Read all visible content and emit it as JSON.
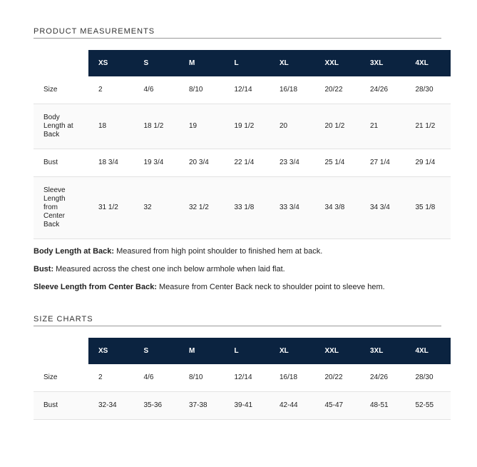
{
  "sections": [
    {
      "title": "PRODUCT MEASUREMENTS",
      "table": {
        "header": [
          "XS",
          "S",
          "M",
          "L",
          "XL",
          "XXL",
          "3XL",
          "4XL"
        ],
        "rows": [
          [
            "Size",
            "2",
            "4/6",
            "8/10",
            "12/14",
            "16/18",
            "20/22",
            "24/26",
            "28/30"
          ],
          [
            "Body Length at Back",
            "18",
            "18 1/2",
            "19",
            "19 1/2",
            "20",
            "20 1/2",
            "21",
            "21 1/2"
          ],
          [
            "Bust",
            "18 3/4",
            "19 3/4",
            "20 3/4",
            "22 1/4",
            "23 3/4",
            "25 1/4",
            "27 1/4",
            "29 1/4"
          ],
          [
            "Sleeve Length from Center Back",
            "31 1/2",
            "32",
            "32 1/2",
            "33 1/8",
            "33 3/4",
            "34 3/8",
            "34 3/4",
            "35 1/8"
          ]
        ]
      },
      "notes": [
        {
          "term": "Body Length at Back:",
          "text": "Measured from high point shoulder to finished hem at back."
        },
        {
          "term": "Bust:",
          "text": "Measured across the chest one inch below armhole when laid flat."
        },
        {
          "term": "Sleeve Length from Center Back:",
          "text": "Measure from Center Back neck to shoulder point to sleeve hem."
        }
      ]
    },
    {
      "title": "SIZE CHARTS",
      "table": {
        "header": [
          "XS",
          "S",
          "M",
          "L",
          "XL",
          "XXL",
          "3XL",
          "4XL"
        ],
        "rows": [
          [
            "Size",
            "2",
            "4/6",
            "8/10",
            "12/14",
            "16/18",
            "20/22",
            "24/26",
            "28/30"
          ],
          [
            "Bust",
            "32-34",
            "35-36",
            "37-38",
            "39-41",
            "42-44",
            "45-47",
            "48-51",
            "52-55"
          ]
        ]
      }
    }
  ]
}
